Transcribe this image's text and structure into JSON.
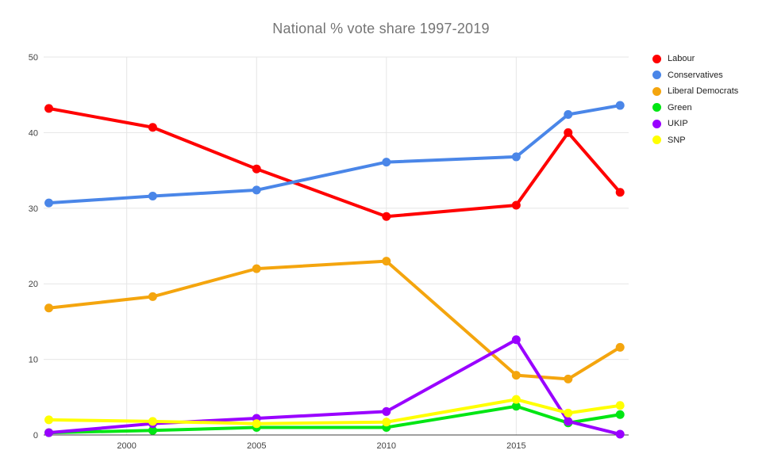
{
  "chart": {
    "title": "National % vote share 1997-2019"
  },
  "chart_data": {
    "type": "line",
    "title": "National % vote share 1997-2019",
    "x": [
      1997,
      2001,
      2005,
      2010,
      2015,
      2017,
      2019
    ],
    "x_ticks": [
      2000,
      2005,
      2010,
      2015
    ],
    "y_ticks": [
      0,
      10,
      20,
      30,
      40,
      50
    ],
    "xlim": [
      1996.8,
      2019.33
    ],
    "ylim": [
      0,
      50
    ],
    "grid": true,
    "legend_position": "right",
    "xlabel": "",
    "ylabel": "",
    "series": [
      {
        "name": "Labour",
        "color": "#FF0000",
        "values": [
          43.2,
          40.7,
          35.2,
          28.9,
          30.4,
          40.0,
          32.1
        ]
      },
      {
        "name": "Conservatives",
        "color": "#4A86E8",
        "values": [
          30.7,
          31.6,
          32.4,
          36.1,
          36.8,
          42.4,
          43.6
        ]
      },
      {
        "name": "Liberal Democrats",
        "color": "#F4A50E",
        "values": [
          16.8,
          18.3,
          22.0,
          23.0,
          7.9,
          7.4,
          11.6
        ]
      },
      {
        "name": "Green",
        "color": "#00E613",
        "values": [
          0.3,
          0.6,
          1.0,
          1.0,
          3.8,
          1.6,
          2.7
        ]
      },
      {
        "name": "UKIP",
        "color": "#9900FF",
        "values": [
          0.3,
          1.5,
          2.2,
          3.1,
          12.6,
          1.8,
          0.1
        ]
      },
      {
        "name": "SNP",
        "color": "#FFFF00",
        "values": [
          2.0,
          1.8,
          1.5,
          1.7,
          4.7,
          2.9,
          3.9
        ]
      }
    ],
    "colors": {
      "gridline": "#e6e6e6",
      "axis_line": "#424242",
      "tick_text": "#424242",
      "title_text": "#757575",
      "legend_text": "#212121"
    }
  }
}
